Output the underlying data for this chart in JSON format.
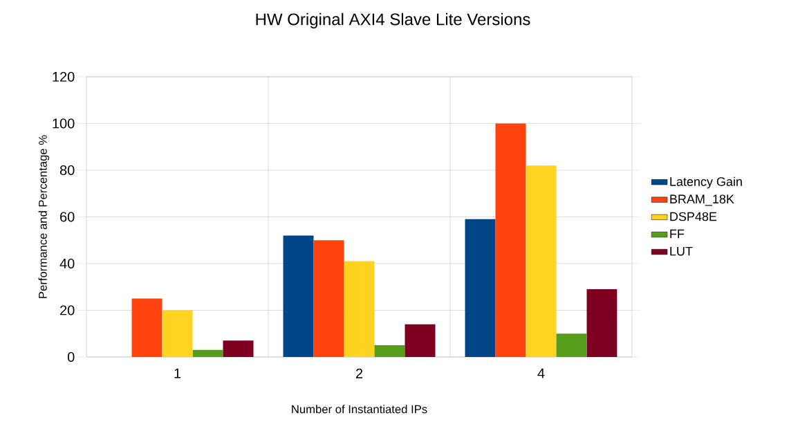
{
  "chart_data": {
    "type": "bar",
    "title": "HW Original AXI4 Slave Lite Versions",
    "xlabel": "Number of Instantiated IPs",
    "ylabel": "Performance and Percentage %",
    "categories": [
      "1",
      "2",
      "4"
    ],
    "series": [
      {
        "name": "Latency Gain",
        "color": "#004586",
        "values": [
          0,
          52,
          59
        ]
      },
      {
        "name": "BRAM_18K",
        "color": "#ff420e",
        "values": [
          25,
          50,
          100
        ]
      },
      {
        "name": "DSP48E",
        "color": "#ffd320",
        "values": [
          20,
          41,
          82
        ]
      },
      {
        "name": "FF",
        "color": "#579d1c",
        "values": [
          3,
          5,
          10
        ]
      },
      {
        "name": "LUT",
        "color": "#7e0021",
        "values": [
          7,
          14,
          29
        ]
      }
    ],
    "ylim": [
      0,
      120
    ],
    "yticks": [
      0,
      20,
      40,
      60,
      80,
      100,
      120
    ],
    "grid": true,
    "legend": "right"
  }
}
